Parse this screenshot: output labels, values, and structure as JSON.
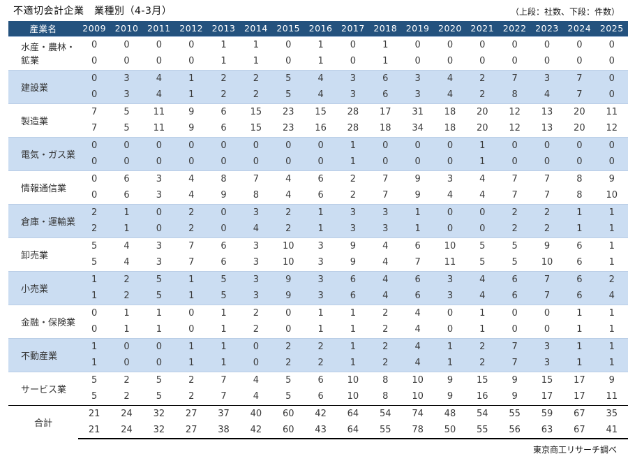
{
  "title": "不適切会計企業　業種別（4-3月）",
  "legend": "（上段：社数、下段：件数）",
  "footer": "東京商工リサーチ調べ",
  "colors": {
    "header_bg": "#24527E",
    "header_text": "#FFFFFF",
    "band_bg": "#CBDDF2",
    "group_divider": "#B9CDE6",
    "total_border": "#000000"
  },
  "chart_data": {
    "type": "table",
    "title": "不適切会計企業　業種別（4-3月）",
    "note": "上段：社数、下段：件数",
    "row_header": "産業名",
    "years": [
      "2009",
      "2010",
      "2011",
      "2012",
      "2013",
      "2014",
      "2015",
      "2016",
      "2017",
      "2018",
      "2019",
      "2020",
      "2021",
      "2022",
      "2023",
      "2024",
      "2025"
    ],
    "rows": [
      {
        "label": "水産・農林・鉱業",
        "companies": [
          0,
          0,
          0,
          0,
          1,
          1,
          0,
          1,
          0,
          1,
          0,
          0,
          0,
          0,
          0,
          0,
          0
        ],
        "cases": [
          0,
          0,
          0,
          0,
          1,
          1,
          0,
          1,
          0,
          1,
          0,
          0,
          0,
          0,
          0,
          0,
          0
        ]
      },
      {
        "label": "建設業",
        "companies": [
          0,
          3,
          4,
          1,
          2,
          2,
          5,
          4,
          3,
          6,
          3,
          4,
          2,
          7,
          3,
          7,
          0
        ],
        "cases": [
          0,
          3,
          4,
          1,
          2,
          2,
          5,
          4,
          3,
          6,
          3,
          4,
          2,
          8,
          4,
          7,
          0
        ]
      },
      {
        "label": "製造業",
        "companies": [
          7,
          5,
          11,
          9,
          6,
          15,
          23,
          15,
          28,
          17,
          31,
          18,
          20,
          12,
          13,
          20,
          11
        ],
        "cases": [
          7,
          5,
          11,
          9,
          6,
          15,
          23,
          16,
          28,
          18,
          34,
          18,
          20,
          12,
          13,
          20,
          12
        ]
      },
      {
        "label": "電気・ガス業",
        "companies": [
          0,
          0,
          0,
          0,
          0,
          0,
          0,
          0,
          1,
          0,
          0,
          0,
          1,
          0,
          0,
          0,
          0
        ],
        "cases": [
          0,
          0,
          0,
          0,
          0,
          0,
          0,
          0,
          1,
          0,
          0,
          0,
          1,
          0,
          0,
          0,
          0
        ]
      },
      {
        "label": "情報通信業",
        "companies": [
          0,
          6,
          3,
          4,
          8,
          7,
          4,
          6,
          2,
          7,
          9,
          3,
          4,
          7,
          7,
          8,
          9
        ],
        "cases": [
          0,
          6,
          3,
          4,
          9,
          8,
          4,
          6,
          2,
          7,
          9,
          4,
          4,
          7,
          7,
          8,
          10
        ]
      },
      {
        "label": "倉庫・運輸業",
        "companies": [
          2,
          1,
          0,
          2,
          0,
          3,
          2,
          1,
          3,
          3,
          1,
          0,
          0,
          2,
          2,
          1,
          1
        ],
        "cases": [
          2,
          1,
          0,
          2,
          0,
          4,
          2,
          1,
          3,
          3,
          1,
          0,
          0,
          2,
          2,
          1,
          1
        ]
      },
      {
        "label": "卸売業",
        "companies": [
          5,
          4,
          3,
          7,
          6,
          3,
          10,
          3,
          9,
          4,
          6,
          10,
          5,
          5,
          9,
          6,
          1
        ],
        "cases": [
          5,
          4,
          3,
          7,
          6,
          3,
          10,
          3,
          9,
          4,
          7,
          11,
          5,
          5,
          10,
          6,
          1
        ]
      },
      {
        "label": "小売業",
        "companies": [
          1,
          2,
          5,
          1,
          5,
          3,
          9,
          3,
          6,
          4,
          6,
          3,
          4,
          6,
          7,
          6,
          2
        ],
        "cases": [
          1,
          2,
          5,
          1,
          5,
          3,
          9,
          3,
          6,
          4,
          6,
          3,
          4,
          6,
          7,
          6,
          4
        ]
      },
      {
        "label": "金融・保険業",
        "companies": [
          0,
          1,
          1,
          0,
          1,
          2,
          0,
          1,
          1,
          2,
          4,
          0,
          1,
          0,
          0,
          1,
          1
        ],
        "cases": [
          0,
          1,
          1,
          0,
          1,
          2,
          0,
          1,
          1,
          2,
          4,
          0,
          1,
          0,
          0,
          1,
          1
        ]
      },
      {
        "label": "不動産業",
        "companies": [
          1,
          0,
          0,
          1,
          1,
          0,
          2,
          2,
          1,
          2,
          4,
          1,
          2,
          7,
          3,
          1,
          1
        ],
        "cases": [
          1,
          0,
          0,
          1,
          1,
          0,
          2,
          2,
          1,
          2,
          4,
          1,
          2,
          7,
          3,
          1,
          1
        ]
      },
      {
        "label": "サービス業",
        "companies": [
          5,
          2,
          5,
          2,
          7,
          4,
          5,
          6,
          10,
          8,
          10,
          9,
          15,
          9,
          15,
          17,
          9
        ],
        "cases": [
          5,
          2,
          5,
          2,
          7,
          4,
          5,
          6,
          10,
          8,
          10,
          9,
          16,
          9,
          17,
          17,
          11
        ]
      },
      {
        "label": "合計",
        "is_total": true,
        "companies": [
          21,
          24,
          32,
          27,
          37,
          40,
          60,
          42,
          64,
          54,
          74,
          48,
          54,
          55,
          59,
          67,
          35
        ],
        "cases": [
          21,
          24,
          32,
          27,
          38,
          42,
          60,
          43,
          64,
          55,
          78,
          50,
          55,
          56,
          63,
          67,
          41
        ]
      }
    ]
  }
}
